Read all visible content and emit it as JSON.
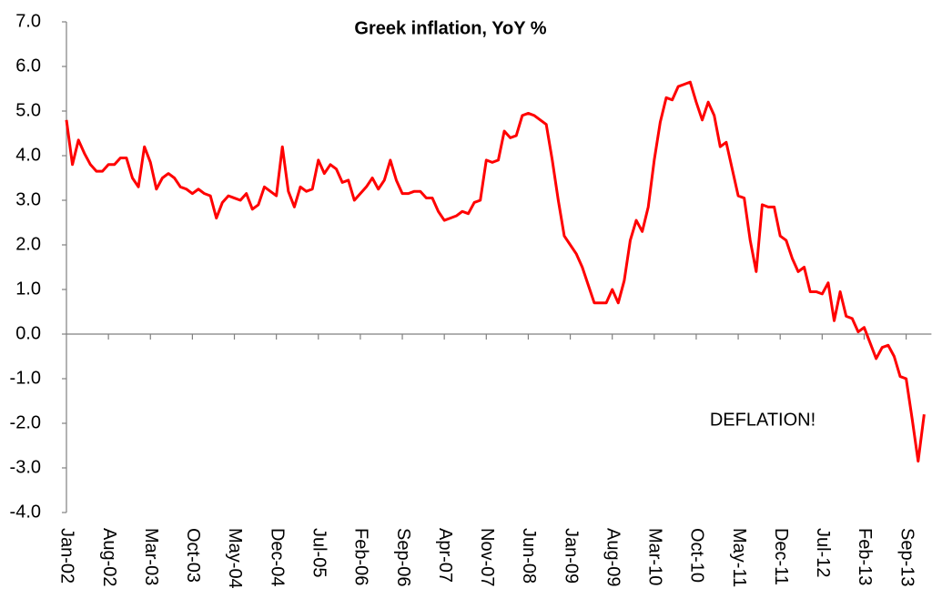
{
  "chart_data": {
    "type": "line",
    "title": "Greek inflation, YoY %",
    "annotation": "DEFLATION!",
    "color": "#ff0000",
    "categories": [
      "Jan-02",
      null,
      null,
      null,
      null,
      null,
      null,
      "Aug-02",
      null,
      null,
      null,
      null,
      null,
      null,
      "Mar-03",
      null,
      null,
      null,
      null,
      null,
      null,
      "Oct-03",
      null,
      null,
      null,
      null,
      null,
      null,
      "May-04",
      null,
      null,
      null,
      null,
      null,
      null,
      "Dec-04",
      null,
      null,
      null,
      null,
      null,
      null,
      "Jul-05",
      null,
      null,
      null,
      null,
      null,
      null,
      "Feb-06",
      null,
      null,
      null,
      null,
      null,
      null,
      "Sep-06",
      null,
      null,
      null,
      null,
      null,
      null,
      "Apr-07",
      null,
      null,
      null,
      null,
      null,
      null,
      "Nov-07",
      null,
      null,
      null,
      null,
      null,
      null,
      "Jun-08",
      null,
      null,
      null,
      null,
      null,
      null,
      "Jan-09",
      null,
      null,
      null,
      null,
      null,
      null,
      "Aug-09",
      null,
      null,
      null,
      null,
      null,
      null,
      "Mar-10",
      null,
      null,
      null,
      null,
      null,
      null,
      "Oct-10",
      null,
      null,
      null,
      null,
      null,
      null,
      "May-11",
      null,
      null,
      null,
      null,
      null,
      null,
      "Dec-11",
      null,
      null,
      null,
      null,
      null,
      null,
      "Jul-12",
      null,
      null,
      null,
      null,
      null,
      null,
      "Feb-13",
      null,
      null,
      null,
      null,
      null,
      null,
      "Sep-13",
      null,
      null,
      null
    ],
    "values": [
      4.8,
      3.8,
      4.35,
      4.05,
      3.8,
      3.65,
      3.65,
      3.8,
      3.8,
      3.95,
      3.95,
      3.5,
      3.3,
      4.2,
      3.85,
      3.25,
      3.5,
      3.6,
      3.5,
      3.3,
      3.25,
      3.15,
      3.25,
      3.15,
      3.1,
      2.6,
      2.95,
      3.1,
      3.05,
      3.0,
      3.15,
      2.8,
      2.9,
      3.3,
      3.2,
      3.1,
      4.2,
      3.2,
      2.85,
      3.3,
      3.2,
      3.25,
      3.9,
      3.6,
      3.8,
      3.7,
      3.4,
      3.45,
      3.0,
      3.15,
      3.3,
      3.5,
      3.25,
      3.45,
      3.9,
      3.45,
      3.15,
      3.15,
      3.2,
      3.2,
      3.05,
      3.05,
      2.75,
      2.55,
      2.6,
      2.65,
      2.75,
      2.7,
      2.95,
      3.0,
      3.9,
      3.85,
      3.9,
      4.55,
      4.4,
      4.45,
      4.9,
      4.95,
      4.9,
      4.8,
      4.7,
      3.9,
      3.0,
      2.2,
      2.0,
      1.8,
      1.5,
      1.1,
      0.7,
      0.7,
      0.7,
      1.0,
      0.7,
      1.2,
      2.1,
      2.55,
      2.3,
      2.85,
      3.9,
      4.75,
      5.3,
      5.25,
      5.55,
      5.6,
      5.65,
      5.2,
      4.8,
      5.2,
      4.9,
      4.2,
      4.3,
      3.7,
      3.1,
      3.05,
      2.1,
      1.4,
      2.9,
      2.85,
      2.85,
      2.2,
      2.1,
      1.7,
      1.4,
      1.5,
      0.95,
      0.95,
      0.9,
      1.15,
      0.3,
      0.95,
      0.4,
      0.35,
      0.05,
      0.15,
      -0.2,
      -0.55,
      -0.3,
      -0.25,
      -0.5,
      -0.95,
      -1.0,
      -1.9,
      -2.85,
      -1.8
    ],
    "ylim": [
      -4,
      7
    ],
    "yticks": [
      {
        "value": -4,
        "label": "-4.0"
      },
      {
        "value": -3,
        "label": "-3.0"
      },
      {
        "value": -2,
        "label": "-2.0"
      },
      {
        "value": -1,
        "label": "-1.0"
      },
      {
        "value": 0,
        "label": "0.0"
      },
      {
        "value": 1,
        "label": "1.0"
      },
      {
        "value": 2,
        "label": "2.0"
      },
      {
        "value": 3,
        "label": "3.0"
      },
      {
        "value": 4,
        "label": "4.0"
      },
      {
        "value": 5,
        "label": "5.0"
      },
      {
        "value": 6,
        "label": "6.0"
      },
      {
        "value": 7,
        "label": "7.0"
      }
    ],
    "grid": false
  }
}
